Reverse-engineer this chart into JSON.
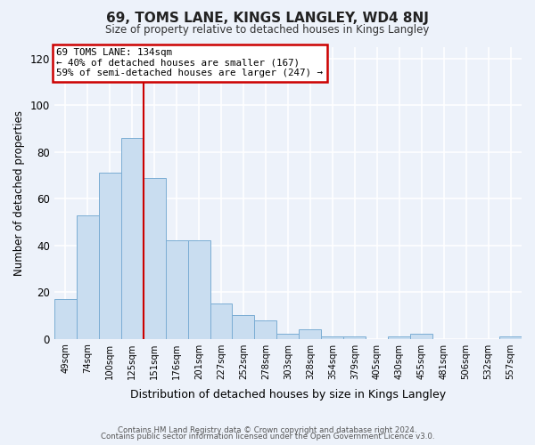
{
  "title": "69, TOMS LANE, KINGS LANGLEY, WD4 8NJ",
  "subtitle": "Size of property relative to detached houses in Kings Langley",
  "xlabel": "Distribution of detached houses by size in Kings Langley",
  "ylabel": "Number of detached properties",
  "bar_values": [
    17,
    53,
    71,
    86,
    69,
    42,
    42,
    15,
    10,
    8,
    2,
    4,
    1,
    1,
    0,
    1,
    2,
    0,
    0,
    0,
    1
  ],
  "bar_labels": [
    "49sqm",
    "74sqm",
    "100sqm",
    "125sqm",
    "151sqm",
    "176sqm",
    "201sqm",
    "227sqm",
    "252sqm",
    "278sqm",
    "303sqm",
    "328sqm",
    "354sqm",
    "379sqm",
    "405sqm",
    "430sqm",
    "455sqm",
    "481sqm",
    "506sqm",
    "532sqm",
    "557sqm"
  ],
  "bar_color": "#c9ddf0",
  "bar_edge_color": "#7badd4",
  "background_color": "#edf2fa",
  "grid_color": "#ffffff",
  "annotation_box_text": "69 TOMS LANE: 134sqm\n← 40% of detached houses are smaller (167)\n59% of semi-detached houses are larger (247) →",
  "annotation_box_color": "#ffffff",
  "annotation_box_edge_color": "#cc0000",
  "vline_bin_idx": 3,
  "vline_color": "#cc0000",
  "ylim": [
    0,
    125
  ],
  "yticks": [
    0,
    20,
    40,
    60,
    80,
    100,
    120
  ],
  "footer_line1": "Contains HM Land Registry data © Crown copyright and database right 2024.",
  "footer_line2": "Contains public sector information licensed under the Open Government Licence v3.0."
}
